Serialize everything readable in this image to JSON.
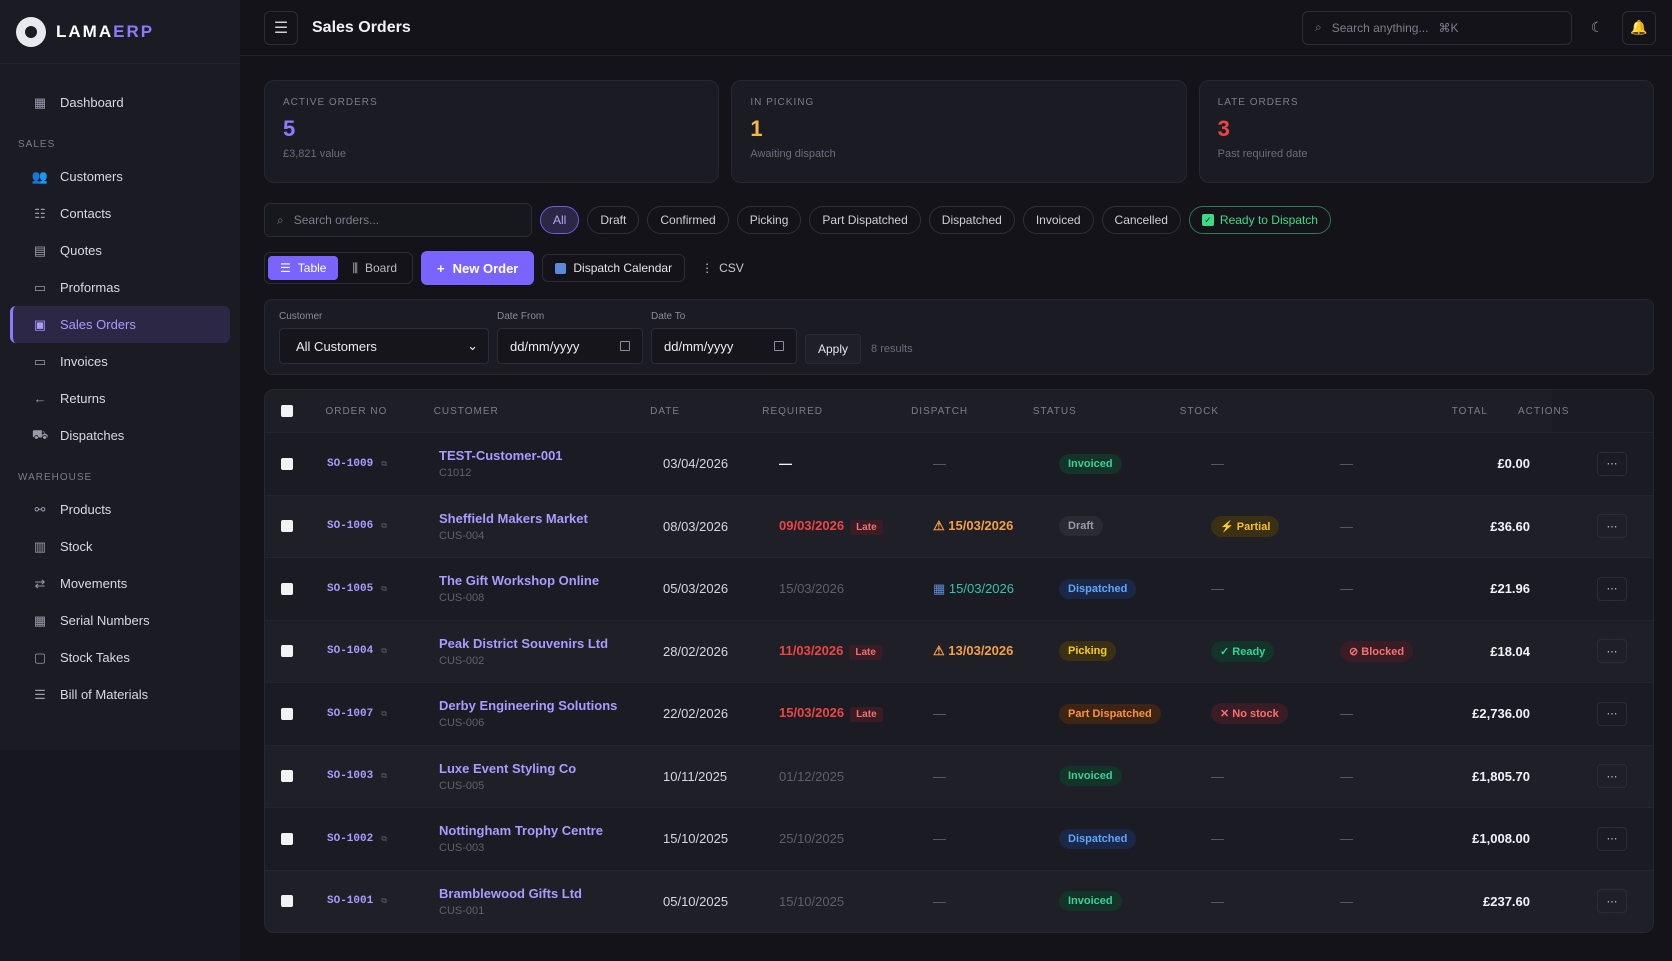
{
  "brand": {
    "name_main": "LAMA",
    "name_accent": "ERP"
  },
  "sidebar": {
    "dashboard": "Dashboard",
    "sales_section": "SALES",
    "sales_items": [
      "Customers",
      "Contacts",
      "Quotes",
      "Proformas",
      "Sales Orders",
      "Invoices",
      "Returns",
      "Dispatches"
    ],
    "warehouse_section": "WAREHOUSE",
    "warehouse_items": [
      "Products",
      "Stock",
      "Movements",
      "Serial Numbers",
      "Stock Takes",
      "Bill of Materials"
    ]
  },
  "header": {
    "title": "Sales Orders",
    "search_placeholder": "Search anything...",
    "search_shortcut": "⌘K"
  },
  "stats": [
    {
      "label": "ACTIVE ORDERS",
      "value": "5",
      "sub": "£3,821 value",
      "color": "#8b7bff"
    },
    {
      "label": "IN PICKING",
      "value": "1",
      "sub": "Awaiting dispatch",
      "color": "#f5b841"
    },
    {
      "label": "LATE ORDERS",
      "value": "3",
      "sub": "Past required date",
      "color": "#ef4444"
    }
  ],
  "filters": {
    "search_placeholder": "Search orders...",
    "chips": [
      "All",
      "Draft",
      "Confirmed",
      "Picking",
      "Part Dispatched",
      "Dispatched",
      "Invoiced",
      "Cancelled"
    ],
    "ready_chip": "Ready to Dispatch"
  },
  "view": {
    "table": "Table",
    "board": "Board",
    "new_order": "New Order",
    "dispatch_calendar": "Dispatch Calendar",
    "csv": "CSV"
  },
  "filter_panel": {
    "customer_label": "Customer",
    "customer_value": "All Customers",
    "date_from_label": "Date From",
    "date_from_value": "dd/mm/yyyy",
    "date_to_label": "Date To",
    "date_to_value": "dd/mm/yyyy",
    "apply": "Apply",
    "results": "8 results"
  },
  "table": {
    "headers": [
      "ORDER NO",
      "CUSTOMER",
      "DATE",
      "REQUIRED",
      "DISPATCH",
      "STATUS",
      "STOCK",
      "TOTAL",
      "ACTIONS"
    ],
    "rows": [
      {
        "no": "SO-1009",
        "customer": "TEST-Customer-001",
        "code": "C1012",
        "date": "03/04/2026",
        "required": "—",
        "dispatch": "—",
        "status": "Invoiced",
        "stock": "—",
        "extra": "—",
        "total": "£0.00"
      },
      {
        "no": "SO-1006",
        "customer": "Sheffield Makers Market",
        "code": "CUS-004",
        "date": "08/03/2026",
        "required": "09/03/2026",
        "required_late": "Late",
        "dispatch": "15/03/2026",
        "status": "Draft",
        "stock": "Partial",
        "extra": "—",
        "total": "£36.60"
      },
      {
        "no": "SO-1005",
        "customer": "The Gift Workshop Online",
        "code": "CUS-008",
        "date": "05/03/2026",
        "required": "15/03/2026",
        "dispatch": "15/03/2026",
        "status": "Dispatched",
        "stock": "—",
        "extra": "—",
        "total": "£21.96"
      },
      {
        "no": "SO-1004",
        "customer": "Peak District Souvenirs Ltd",
        "code": "CUS-002",
        "date": "28/02/2026",
        "required": "11/03/2026",
        "required_late": "Late",
        "dispatch": "13/03/2026",
        "status": "Picking",
        "stock": "Ready",
        "extra": "Blocked",
        "total": "£18.04"
      },
      {
        "no": "SO-1007",
        "customer": "Derby Engineering Solutions",
        "code": "CUS-006",
        "date": "22/02/2026",
        "required": "15/03/2026",
        "required_late": "Late",
        "dispatch": "—",
        "status": "Part Dispatched",
        "stock": "No stock",
        "extra": "—",
        "total": "£2,736.00"
      },
      {
        "no": "SO-1003",
        "customer": "Luxe Event Styling Co",
        "code": "CUS-005",
        "date": "10/11/2025",
        "required": "01/12/2025",
        "dispatch": "—",
        "status": "Invoiced",
        "stock": "—",
        "extra": "—",
        "total": "£1,805.70"
      },
      {
        "no": "SO-1002",
        "customer": "Nottingham Trophy Centre",
        "code": "CUS-003",
        "date": "15/10/2025",
        "required": "25/10/2025",
        "dispatch": "—",
        "status": "Dispatched",
        "stock": "—",
        "extra": "—",
        "total": "£1,008.00"
      },
      {
        "no": "SO-1001",
        "customer": "Bramblewood Gifts Ltd",
        "code": "CUS-001",
        "date": "05/10/2025",
        "required": "15/10/2025",
        "dispatch": "—",
        "status": "Invoiced",
        "stock": "—",
        "extra": "—",
        "total": "£237.60"
      }
    ]
  },
  "colors": {
    "accent": "#7a64ff",
    "late": "#ef4444",
    "warning": "#f59e42",
    "success": "#34d399"
  }
}
